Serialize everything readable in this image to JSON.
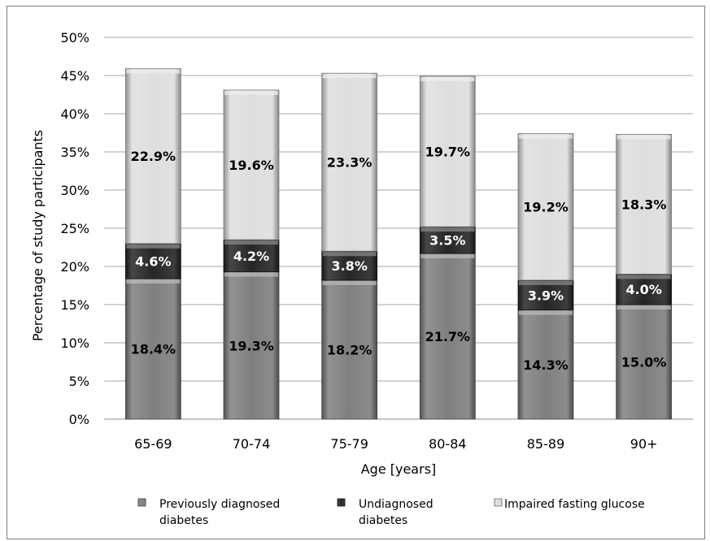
{
  "chart_data": {
    "type": "bar",
    "stacked": true,
    "title": "",
    "xlabel": "Age [years]",
    "ylabel": "Percentage of study participants",
    "ylim": [
      0,
      50
    ],
    "yticks": [
      "0%",
      "5%",
      "10%",
      "15%",
      "20%",
      "25%",
      "30%",
      "35%",
      "40%",
      "45%",
      "50%"
    ],
    "grid": true,
    "legend_position": "bottom",
    "categories": [
      "65-69",
      "70-74",
      "75-79",
      "80-84",
      "85-89",
      "90+"
    ],
    "series": [
      {
        "name": "Previously diagnosed diabetes",
        "legend_lines": [
          "Previously diagnosed",
          "diabetes"
        ],
        "color": "#7f7f7f",
        "label_color": "#000000",
        "values": [
          18.4,
          19.3,
          18.2,
          21.7,
          14.3,
          15.0
        ],
        "labels": [
          "18.4%",
          "19.3%",
          "18.2%",
          "21.7%",
          "14.3%",
          "15.0%"
        ]
      },
      {
        "name": "Undiagnosed diabetes",
        "legend_lines": [
          "Undiagnosed",
          "diabetes"
        ],
        "color": "#262626",
        "label_color": "#ffffff",
        "values": [
          4.6,
          4.2,
          3.8,
          3.5,
          3.9,
          4.0
        ],
        "labels": [
          "4.6%",
          "4.2%",
          "3.8%",
          "3.5%",
          "3.9%",
          "4.0%"
        ]
      },
      {
        "name": "Impaired fasting glucose",
        "legend_lines": [
          "Impaired fasting glucose"
        ],
        "color": "#dedede",
        "label_color": "#000000",
        "values": [
          22.9,
          19.6,
          23.3,
          19.7,
          19.2,
          18.3
        ],
        "labels": [
          "22.9%",
          "19.6%",
          "23.3%",
          "19.7%",
          "19.2%",
          "18.3%"
        ]
      }
    ]
  }
}
